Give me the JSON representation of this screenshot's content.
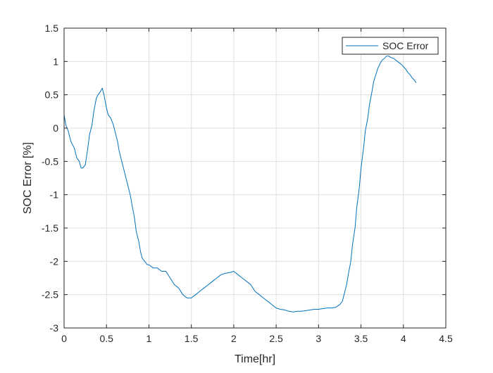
{
  "chart_data": {
    "type": "line",
    "title": "",
    "xlabel": "Time[hr]",
    "ylabel": "SOC Error [%]",
    "xlim": [
      0,
      4.5
    ],
    "ylim": [
      -3,
      1.5
    ],
    "xticks": [
      0,
      0.5,
      1,
      1.5,
      2,
      2.5,
      3,
      3.5,
      4,
      4.5
    ],
    "xtick_labels": [
      "0",
      "0.5",
      "1",
      "1.5",
      "2",
      "2.5",
      "3",
      "3.5",
      "4",
      "4.5"
    ],
    "yticks": [
      -3,
      -2.5,
      -2,
      -1.5,
      -1,
      -0.5,
      0,
      0.5,
      1,
      1.5
    ],
    "ytick_labels": [
      "-3",
      "-2.5",
      "-2",
      "-1.5",
      "-1",
      "-0.5",
      "0",
      "0.5",
      "1",
      "1.5"
    ],
    "grid": true,
    "legend": {
      "location": "top-right",
      "entries": [
        "SOC Error"
      ]
    },
    "series": [
      {
        "name": "SOC Error",
        "color": "#0072BD",
        "x": [
          0,
          0.02,
          0.05,
          0.08,
          0.1,
          0.12,
          0.15,
          0.18,
          0.2,
          0.22,
          0.25,
          0.28,
          0.3,
          0.33,
          0.35,
          0.38,
          0.4,
          0.43,
          0.45,
          0.47,
          0.5,
          0.52,
          0.55,
          0.58,
          0.6,
          0.63,
          0.65,
          0.68,
          0.7,
          0.73,
          0.75,
          0.78,
          0.8,
          0.83,
          0.85,
          0.88,
          0.9,
          0.92,
          0.95,
          0.98,
          1.0,
          1.05,
          1.1,
          1.15,
          1.2,
          1.25,
          1.3,
          1.35,
          1.4,
          1.45,
          1.5,
          1.55,
          1.6,
          1.65,
          1.7,
          1.75,
          1.8,
          1.85,
          1.9,
          1.95,
          2.0,
          2.05,
          2.1,
          2.15,
          2.2,
          2.25,
          2.3,
          2.35,
          2.4,
          2.45,
          2.5,
          2.55,
          2.6,
          2.65,
          2.7,
          2.75,
          2.8,
          2.85,
          2.9,
          2.95,
          3.0,
          3.05,
          3.1,
          3.15,
          3.2,
          3.25,
          3.28,
          3.3,
          3.33,
          3.35,
          3.38,
          3.4,
          3.43,
          3.45,
          3.48,
          3.5,
          3.53,
          3.55,
          3.58,
          3.6,
          3.63,
          3.65,
          3.68,
          3.7,
          3.73,
          3.75,
          3.78,
          3.8,
          3.83,
          3.85,
          3.88,
          3.9,
          3.93,
          3.95,
          3.98,
          4.0,
          4.03,
          4.05,
          4.08,
          4.1,
          4.13,
          4.15
        ],
        "y": [
          0.2,
          0.05,
          -0.05,
          -0.2,
          -0.25,
          -0.3,
          -0.45,
          -0.5,
          -0.6,
          -0.6,
          -0.55,
          -0.3,
          -0.1,
          0.05,
          0.25,
          0.45,
          0.5,
          0.55,
          0.6,
          0.5,
          0.3,
          0.2,
          0.15,
          0.05,
          -0.05,
          -0.2,
          -0.35,
          -0.5,
          -0.6,
          -0.75,
          -0.85,
          -1.0,
          -1.15,
          -1.35,
          -1.55,
          -1.7,
          -1.85,
          -1.95,
          -2.0,
          -2.05,
          -2.05,
          -2.1,
          -2.1,
          -2.15,
          -2.15,
          -2.25,
          -2.35,
          -2.4,
          -2.5,
          -2.55,
          -2.55,
          -2.5,
          -2.45,
          -2.4,
          -2.35,
          -2.3,
          -2.25,
          -2.2,
          -2.18,
          -2.17,
          -2.15,
          -2.2,
          -2.25,
          -2.3,
          -2.35,
          -2.45,
          -2.5,
          -2.55,
          -2.6,
          -2.65,
          -2.7,
          -2.72,
          -2.73,
          -2.75,
          -2.76,
          -2.75,
          -2.75,
          -2.74,
          -2.73,
          -2.72,
          -2.72,
          -2.71,
          -2.7,
          -2.7,
          -2.69,
          -2.65,
          -2.6,
          -2.5,
          -2.35,
          -2.2,
          -2.0,
          -1.75,
          -1.5,
          -1.2,
          -0.9,
          -0.6,
          -0.3,
          -0.05,
          0.15,
          0.35,
          0.55,
          0.7,
          0.82,
          0.9,
          0.98,
          1.02,
          1.05,
          1.08,
          1.08,
          1.06,
          1.05,
          1.03,
          1.0,
          0.98,
          0.95,
          0.92,
          0.88,
          0.84,
          0.8,
          0.76,
          0.72,
          0.68
        ]
      }
    ]
  }
}
